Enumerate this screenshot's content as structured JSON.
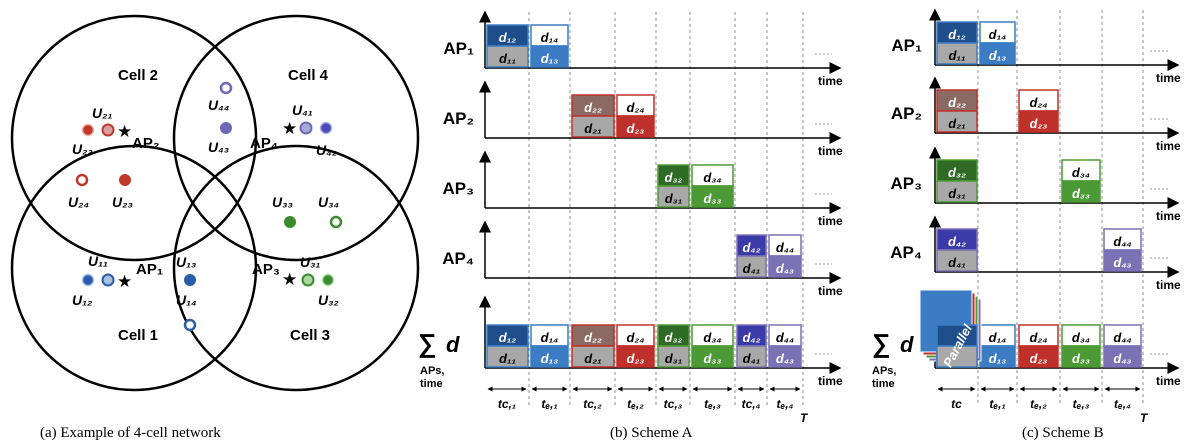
{
  "panel_a": {
    "caption": "(a) Example of 4-cell network",
    "cells": [
      {
        "label": "Cell 1",
        "ap": "AP₁"
      },
      {
        "label": "Cell 2",
        "ap": "AP₂"
      },
      {
        "label": "Cell 3",
        "ap": "AP₃"
      },
      {
        "label": "Cell 4",
        "ap": "AP₄"
      }
    ],
    "users": {
      "u11": "U₁₁",
      "u12": "U₁₂",
      "u13": "U₁₃",
      "u14": "U₁₄",
      "u21": "U₂₁",
      "u22": "U₂₂",
      "u23": "U₂₃",
      "u24": "U₂₄",
      "u31": "U₃₁",
      "u32": "U₃₂",
      "u33": "U₃₃",
      "u34": "U₃₄",
      "u41": "U₄₁",
      "u42": "U₄₂",
      "u43": "U₄₃",
      "u44": "U₄₄"
    },
    "colors": {
      "cell1": "#2a5caa",
      "cell2": "#c0392b",
      "cell3": "#3a8a2f",
      "cell4": "#6a6ab8"
    }
  },
  "panel_b": {
    "caption": "(b) Scheme A",
    "rows": [
      "AP₁",
      "AP₂",
      "AP₃",
      "AP₄"
    ],
    "sum_label": "∑ d",
    "sum_sub1": "APs,",
    "sum_sub2": "time",
    "axis_label": "time",
    "end_label": "T",
    "intervals": [
      "tᴄ,₁",
      "tₑ,₁",
      "tᴄ,₂",
      "tₑ,₂",
      "tᴄ,₃",
      "tₑ,₃",
      "tᴄ,₄",
      "tₑ,₄"
    ]
  },
  "panel_c": {
    "caption": "(c) Scheme B",
    "rows": [
      "AP₁",
      "AP₂",
      "AP₃",
      "AP₄"
    ],
    "sum_label": "∑ d",
    "sum_sub1": "APs,",
    "sum_sub2": "time",
    "axis_label": "time",
    "end_label": "T",
    "parallel": "Parallel",
    "intervals": [
      "tᴄ",
      "tₑ,₁",
      "tₑ,₂",
      "tₑ,₃",
      "tₑ,₄"
    ]
  },
  "blocks": {
    "d11": "d₁₁",
    "d12": "d₁₂",
    "d13": "d₁₃",
    "d14": "d₁₄",
    "d21": "d₂₁",
    "d22": "d₂₂",
    "d23": "d₂₃",
    "d24": "d₂₄",
    "d31": "d₃₁",
    "d32": "d₃₂",
    "d33": "d₃₃",
    "d34": "d₃₄",
    "d41": "d₄₁",
    "d42": "d₄₂",
    "d43": "d₄₃",
    "d44": "d₄₄"
  }
}
